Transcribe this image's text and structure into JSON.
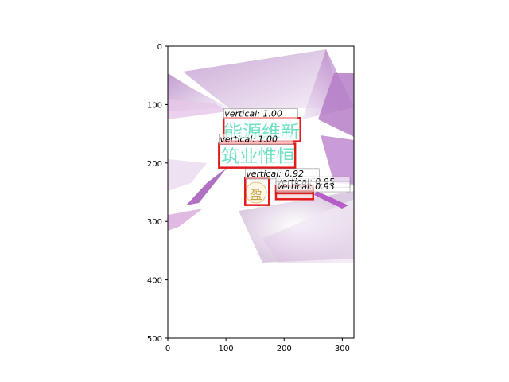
{
  "chart_data": {
    "type": "image-detections",
    "xlim": [
      0,
      320
    ],
    "ylim": [
      500,
      0
    ],
    "x_ticks": [
      "0",
      "100",
      "200",
      "300"
    ],
    "y_ticks": [
      "0",
      "100",
      "200",
      "300",
      "400",
      "500"
    ],
    "image": {
      "texts": [
        {
          "text": "能源维新",
          "x": 100,
          "y": 145,
          "size": 28
        },
        {
          "text": "筑业惟恒",
          "x": 92,
          "y": 190,
          "size": 28
        }
      ],
      "seal_char": "盈"
    },
    "detections": [
      {
        "label": "vertical: 1.00",
        "x0": 96,
        "y0": 123,
        "x1": 228,
        "y1": 163
      },
      {
        "label": "vertical: 1.00",
        "x0": 88,
        "y0": 167,
        "x1": 219,
        "y1": 208
      },
      {
        "label": "vertical: 0.92",
        "x0": 133,
        "y0": 226,
        "x1": 174,
        "y1": 272
      },
      {
        "label": "vertical: 0.95",
        "x0": 186,
        "y0": 240,
        "x1": 250,
        "y1": 252
      },
      {
        "label": "vertical: 0.93",
        "x0": 186,
        "y0": 248,
        "x1": 250,
        "y1": 262
      }
    ],
    "box_color": "#e31a1c"
  }
}
